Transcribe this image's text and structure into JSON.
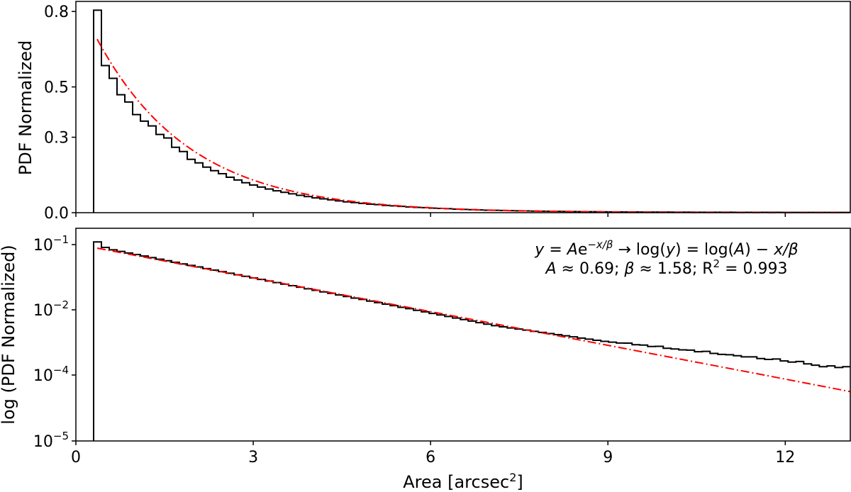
{
  "chart_data": [
    {
      "type": "histogram",
      "ylabel": "PDF Normalized",
      "xlim": [
        0,
        13.1
      ],
      "ylim": [
        0,
        0.84
      ],
      "y_scale": "linear",
      "x_ticks": [
        0,
        3,
        6,
        9,
        12
      ],
      "y_ticks": [
        0.0,
        0.3,
        0.5,
        0.8
      ],
      "y_tick_labels": [
        "0.0",
        "0.3",
        "0.5",
        "0.8"
      ],
      "bin_start": 0.3,
      "bin_width": 0.132,
      "histogram_color": "#000000",
      "values": [
        0.805,
        0.585,
        0.534,
        0.469,
        0.44,
        0.39,
        0.364,
        0.345,
        0.311,
        0.297,
        0.26,
        0.243,
        0.212,
        0.198,
        0.181,
        0.167,
        0.155,
        0.141,
        0.13,
        0.119,
        0.11,
        0.102,
        0.094,
        0.087,
        0.081,
        0.075,
        0.069,
        0.064,
        0.059,
        0.055,
        0.051,
        0.047,
        0.043,
        0.04,
        0.037,
        0.034,
        0.032,
        0.029,
        0.027,
        0.025,
        0.023,
        0.021,
        0.02,
        0.018,
        0.017,
        0.016,
        0.014,
        0.013,
        0.012,
        0.011,
        0.01,
        0.0095,
        0.0088,
        0.0081,
        0.0075,
        0.007,
        0.0065,
        0.006,
        0.0056,
        0.0052,
        0.0048,
        0.0045,
        0.0042,
        0.0039,
        0.0037,
        0.0035,
        0.0033,
        0.0031,
        0.0029,
        0.0028,
        0.0026,
        0.0025,
        0.0024,
        0.0023,
        0.0022,
        0.0021,
        0.002,
        0.0019,
        0.0018,
        0.0017,
        0.0017,
        0.0016,
        0.0015,
        0.0015,
        0.0014,
        0.0014,
        0.0013,
        0.0013,
        0.0012,
        0.0012,
        0.0011,
        0.0011,
        0.0011,
        0.001,
        0.001,
        0.001,
        0.0009
      ],
      "fit": {
        "A": 0.69,
        "beta": 1.58,
        "x_range": [
          0.36,
          13.1
        ],
        "color": "#ff0000",
        "style": "dash-dot"
      }
    },
    {
      "type": "histogram",
      "ylabel": "log (PDF Normalized)",
      "xlabel_base": "Area [arcsec",
      "xlabel_sup": "2",
      "xlabel_end": "]",
      "xlim": [
        0,
        13.1
      ],
      "y_scale": "log",
      "x_ticks": [
        0,
        3,
        6,
        9,
        12
      ],
      "x_tick_labels": [
        "0",
        "3",
        "6",
        "9",
        "12"
      ],
      "y_ticks": [
        0.1,
        0.01,
        0.0001,
        1e-05
      ],
      "y_tick_labels": [
        {
          "base": "10",
          "exp": "−1"
        },
        {
          "base": "10",
          "exp": "−2"
        },
        {
          "base": "10",
          "exp": "−4"
        },
        {
          "base": "10",
          "exp": "−5"
        }
      ],
      "bin_start": 0.3,
      "bin_width": 0.132,
      "histogram_color": "#000000",
      "values": [
        0.11,
        0.0905,
        0.0832,
        0.0787,
        0.0744,
        0.0705,
        0.0667,
        0.0631,
        0.0597,
        0.0565,
        0.0535,
        0.0506,
        0.0479,
        0.0454,
        0.0429,
        0.0406,
        0.0385,
        0.0364,
        0.0344,
        0.0326,
        0.0308,
        0.0292,
        0.0276,
        0.0261,
        0.0247,
        0.0234,
        0.0222,
        0.021,
        0.0199,
        0.0188,
        0.0179,
        0.0169,
        0.016,
        0.0151,
        0.0144,
        0.0136,
        0.0129,
        0.0122,
        0.0116,
        0.0109,
        0.0104,
        0.00966,
        0.00865,
        0.00775,
        0.00697,
        0.00625,
        0.0056,
        0.00504,
        0.00451,
        0.00404,
        0.00364,
        0.00326,
        0.00301,
        0.00277,
        0.00258,
        0.00238,
        0.00219,
        0.00203,
        0.00187,
        0.00173,
        0.0016,
        0.00148,
        0.00136,
        0.00126,
        0.00116,
        0.00108,
        0.00102,
        0.00096,
        0.00095,
        0.00085,
        0.00083,
        0.00075,
        0.00076,
        0.00066,
        0.00063,
        0.00059,
        0.00058,
        0.00052,
        0.00053,
        0.00046,
        0.00043,
        0.00042,
        0.00039,
        0.00036,
        0.00036,
        0.00032,
        0.0003,
        0.00031,
        0.00027,
        0.00025,
        0.00026,
        0.00022,
        0.0002,
        0.00018,
        0.00019,
        0.00017,
        0.00018
      ],
      "fit_points": [
        [
          0.36,
          0.0882
        ],
        [
          5.84,
          0.01
        ],
        [
          11.64,
          0.0001
        ],
        [
          13.1,
          5.6e-05
        ]
      ],
      "fit_color": "#ff0000",
      "annotation": {
        "line1": "y = Ae^{−x/β} → log(y) = log(A) − x/β",
        "line1_parts": {
          "y": "y",
          "eq1": " = ",
          "A": "A",
          "e": "e",
          "exp": "−x/β",
          "arrow": " → log(",
          "y2": "y",
          "mid": ") = log(",
          "A2": "A",
          "end": ") − ",
          "xb": "x/β"
        },
        "line2_parts": {
          "A": "A",
          "a": " ≈ 0.69; ",
          "b": "β",
          "c": " ≈ 1.58; R",
          "sup": "2",
          "d": " = 0.993"
        }
      }
    }
  ]
}
